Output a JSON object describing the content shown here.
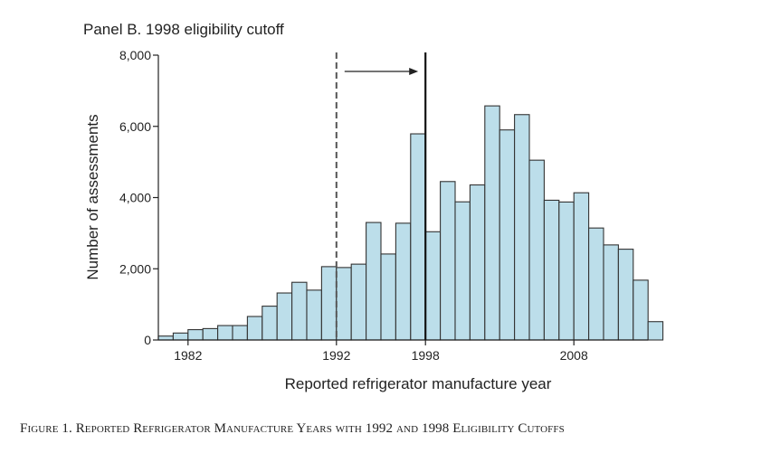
{
  "chart_data": {
    "type": "bar",
    "title": "Panel B. 1998 eligibility cutoff",
    "xlabel": "Reported refrigerator manufacture year",
    "ylabel": "Number of assessments",
    "categories": [
      1980,
      1981,
      1982,
      1983,
      1984,
      1985,
      1986,
      1987,
      1988,
      1989,
      1990,
      1991,
      1992,
      1993,
      1994,
      1995,
      1996,
      1997,
      1998,
      1999,
      2000,
      2001,
      2002,
      2003,
      2004,
      2005,
      2006,
      2007,
      2008,
      2009,
      2010,
      2011,
      2012,
      2013
    ],
    "values": [
      110,
      195,
      290,
      320,
      405,
      405,
      660,
      950,
      1320,
      1620,
      1400,
      2060,
      2035,
      2130,
      3300,
      2415,
      3280,
      5790,
      3040,
      4450,
      3880,
      4355,
      6575,
      5900,
      6330,
      5050,
      3925,
      3875,
      4135,
      3145,
      2670,
      2550,
      1680,
      515
    ],
    "xlim": [
      1980,
      2014
    ],
    "ylim": [
      0,
      8000
    ],
    "x_ticks": [
      1982,
      1992,
      1998,
      2008
    ],
    "x_tick_labels": [
      "1982",
      "1992",
      "1998",
      "2008"
    ],
    "y_ticks": [
      0,
      2000,
      4000,
      6000,
      8000
    ],
    "y_tick_labels": [
      "0",
      "2,000",
      "4,000",
      "6,000",
      "8,000"
    ],
    "reference_lines": [
      {
        "x": 1992,
        "style": "dashed"
      },
      {
        "x": 1998,
        "style": "solid"
      }
    ],
    "annotation": "arrow from 1992 cutoff to 1998 cutoff",
    "bar_color": "#bcdeea",
    "grid": false
  },
  "caption": "Figure 1.  Reported Refrigerator Manufacture Years with 1992 and 1998 Eligibility Cutoffs"
}
